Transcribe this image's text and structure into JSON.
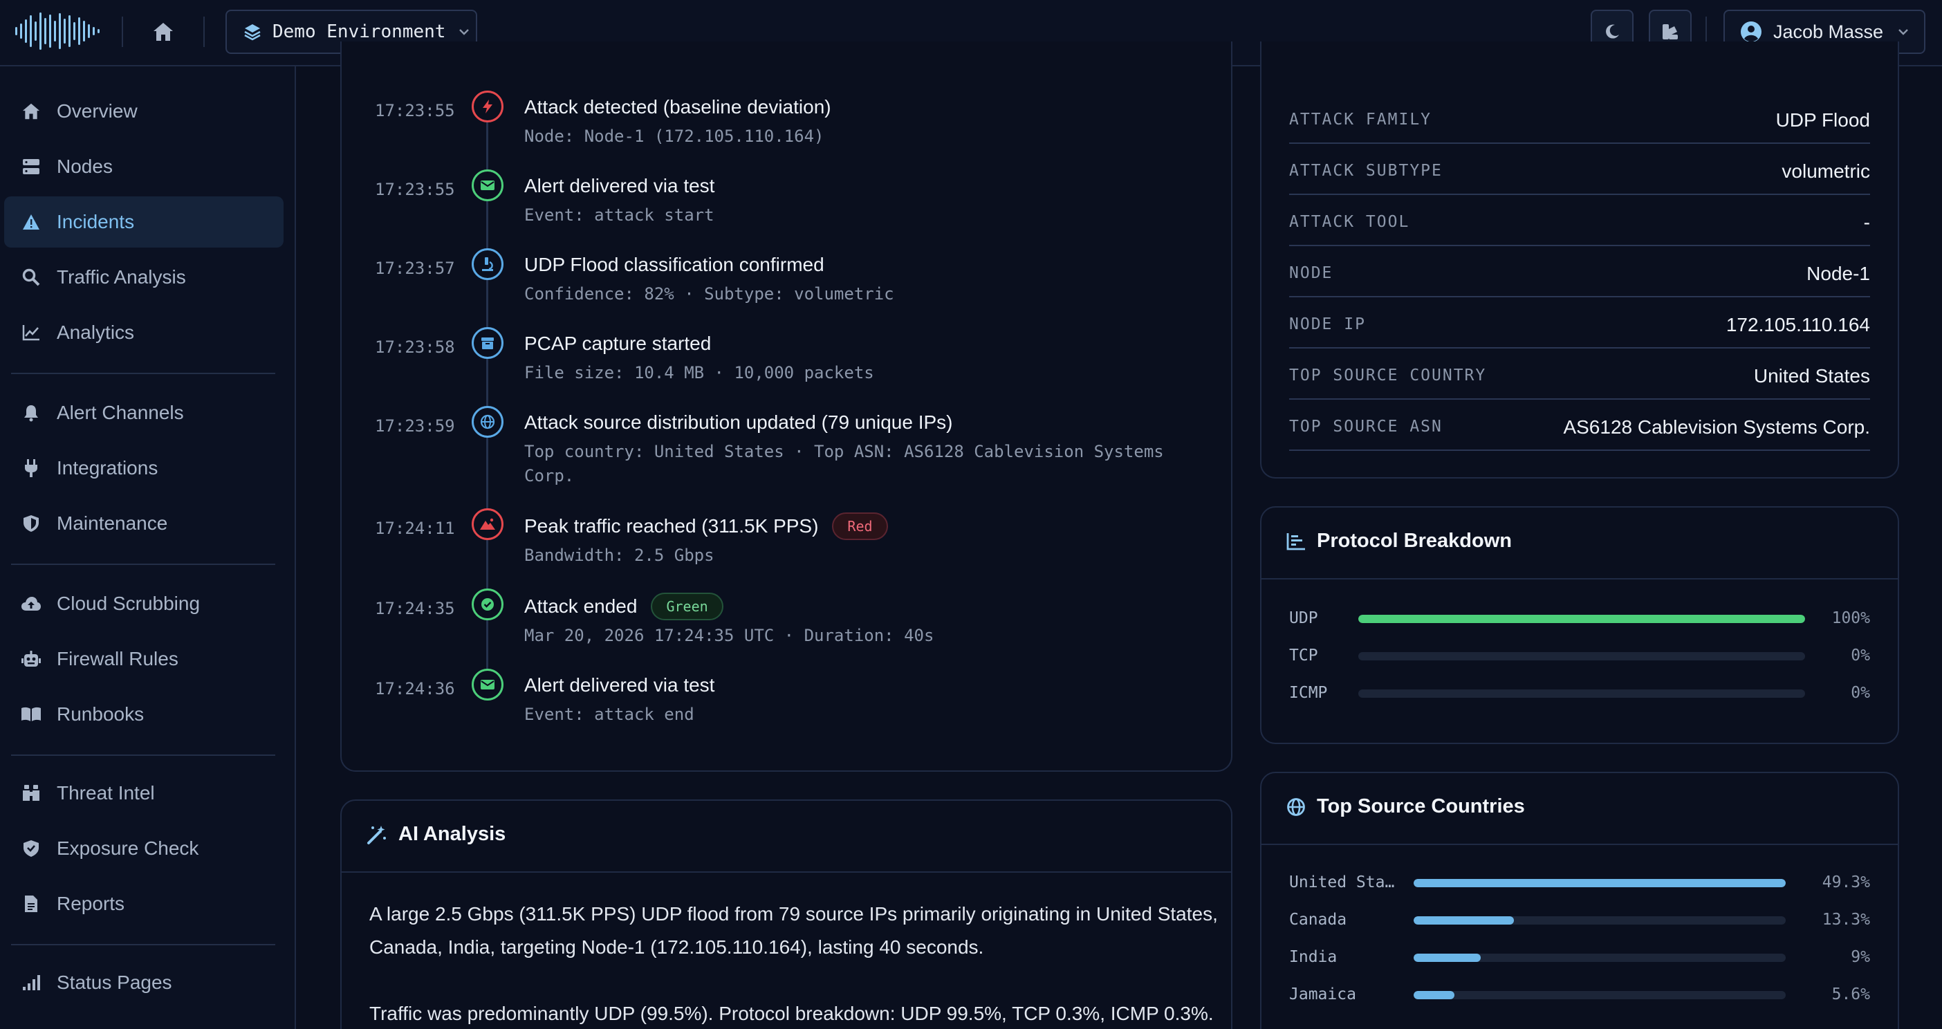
{
  "topbar": {
    "environment": "Demo Environment",
    "user_name": "Jacob Masse"
  },
  "sidebar": {
    "items": [
      {
        "label": "Overview",
        "icon": "home-icon"
      },
      {
        "label": "Nodes",
        "icon": "server-icon"
      },
      {
        "label": "Incidents",
        "icon": "warning-icon",
        "active": true
      },
      {
        "label": "Traffic Analysis",
        "icon": "search-icon"
      },
      {
        "label": "Analytics",
        "icon": "line-chart-icon"
      },
      {
        "label": "Alert Channels",
        "icon": "bell-icon"
      },
      {
        "label": "Integrations",
        "icon": "plug-icon"
      },
      {
        "label": "Maintenance",
        "icon": "shield-icon"
      },
      {
        "label": "Cloud Scrubbing",
        "icon": "cloud-upload-icon"
      },
      {
        "label": "Firewall Rules",
        "icon": "robot-icon"
      },
      {
        "label": "Runbooks",
        "icon": "book-icon"
      },
      {
        "label": "Threat Intel",
        "icon": "binoculars-icon"
      },
      {
        "label": "Exposure Check",
        "icon": "shield-check-icon"
      },
      {
        "label": "Reports",
        "icon": "file-icon"
      },
      {
        "label": "Status Pages",
        "icon": "signal-icon"
      }
    ]
  },
  "timeline": [
    {
      "time": "17:23:55",
      "title": "Attack detected (baseline deviation)",
      "sub": "Node: Node-1 (172.105.110.164)",
      "icon": "bolt-icon",
      "color": "#e5484d"
    },
    {
      "time": "17:23:55",
      "title": "Alert delivered via test",
      "sub": "Event: attack start",
      "icon": "envelope-icon",
      "color": "#4ccf7a"
    },
    {
      "time": "17:23:57",
      "title": "UDP Flood classification confirmed",
      "sub": "Confidence: 82% · Subtype: volumetric",
      "icon": "microscope-icon",
      "color": "#5aa9e6"
    },
    {
      "time": "17:23:58",
      "title": "PCAP capture started",
      "sub": "File size: 10.4 MB · 10,000 packets",
      "icon": "archive-icon",
      "color": "#5aa9e6"
    },
    {
      "time": "17:23:59",
      "title": "Attack source distribution updated (79 unique IPs)",
      "sub": "Top country: United States · Top ASN: AS6128 Cablevision Systems",
      "sub2": "Corp.",
      "icon": "globe-icon",
      "color": "#5aa9e6"
    },
    {
      "time": "17:24:11",
      "title": "Peak traffic reached (311.5K PPS)",
      "badge": "Red",
      "sub": "Bandwidth: 2.5 Gbps",
      "icon": "mountain-icon",
      "color": "#e5484d"
    },
    {
      "time": "17:24:35",
      "title": "Attack ended",
      "badge": "Green",
      "sub": "Mar 20, 2026 17:24:35 UTC · Duration: 40s",
      "icon": "check-circle-icon",
      "color": "#4ccf7a"
    },
    {
      "time": "17:24:36",
      "title": "Alert delivered via test",
      "sub": "Event: attack end",
      "icon": "envelope-icon",
      "color": "#4ccf7a"
    }
  ],
  "ai_analysis": {
    "title": "AI Analysis",
    "para1": "A large 2.5 Gbps (311.5K PPS) UDP flood from 79 source IPs primarily originating in United States, Canada, India, targeting Node-1 (172.105.110.164), lasting 40 seconds.",
    "para2": "Traffic was predominantly UDP (99.5%). Protocol breakdown: UDP 99.5%, TCP 0.3%, ICMP 0.3%."
  },
  "details": [
    {
      "key": "ATTACK FAMILY",
      "value": "UDP Flood"
    },
    {
      "key": "ATTACK SUBTYPE",
      "value": "volumetric"
    },
    {
      "key": "ATTACK TOOL",
      "value": "-"
    },
    {
      "key": "NODE",
      "value": "Node-1"
    },
    {
      "key": "NODE IP",
      "value": "172.105.110.164"
    },
    {
      "key": "TOP SOURCE COUNTRY",
      "value": "United States"
    },
    {
      "key": "TOP SOURCE ASN",
      "value": "AS6128 Cablevision Systems Corp."
    }
  ],
  "protocol": {
    "title": "Protocol Breakdown",
    "rows": [
      {
        "label": "UDP",
        "pct": "100%",
        "fraction": 1.0,
        "color": "#4ccf7a"
      },
      {
        "label": "TCP",
        "pct": "0%",
        "fraction": 0.0,
        "color": "#4ccf7a"
      },
      {
        "label": "ICMP",
        "pct": "0%",
        "fraction": 0.0,
        "color": "#4ccf7a"
      }
    ]
  },
  "countries": {
    "title": "Top Source Countries",
    "rows": [
      {
        "label": "United Sta…",
        "pct": "49.3%",
        "fraction": 1.0,
        "color": "#6cb6e8"
      },
      {
        "label": "Canada",
        "pct": "13.3%",
        "fraction": 0.27,
        "color": "#6cb6e8"
      },
      {
        "label": "India",
        "pct": "9%",
        "fraction": 0.18,
        "color": "#6cb6e8"
      },
      {
        "label": "Jamaica",
        "pct": "5.6%",
        "fraction": 0.11,
        "color": "#6cb6e8"
      }
    ]
  }
}
